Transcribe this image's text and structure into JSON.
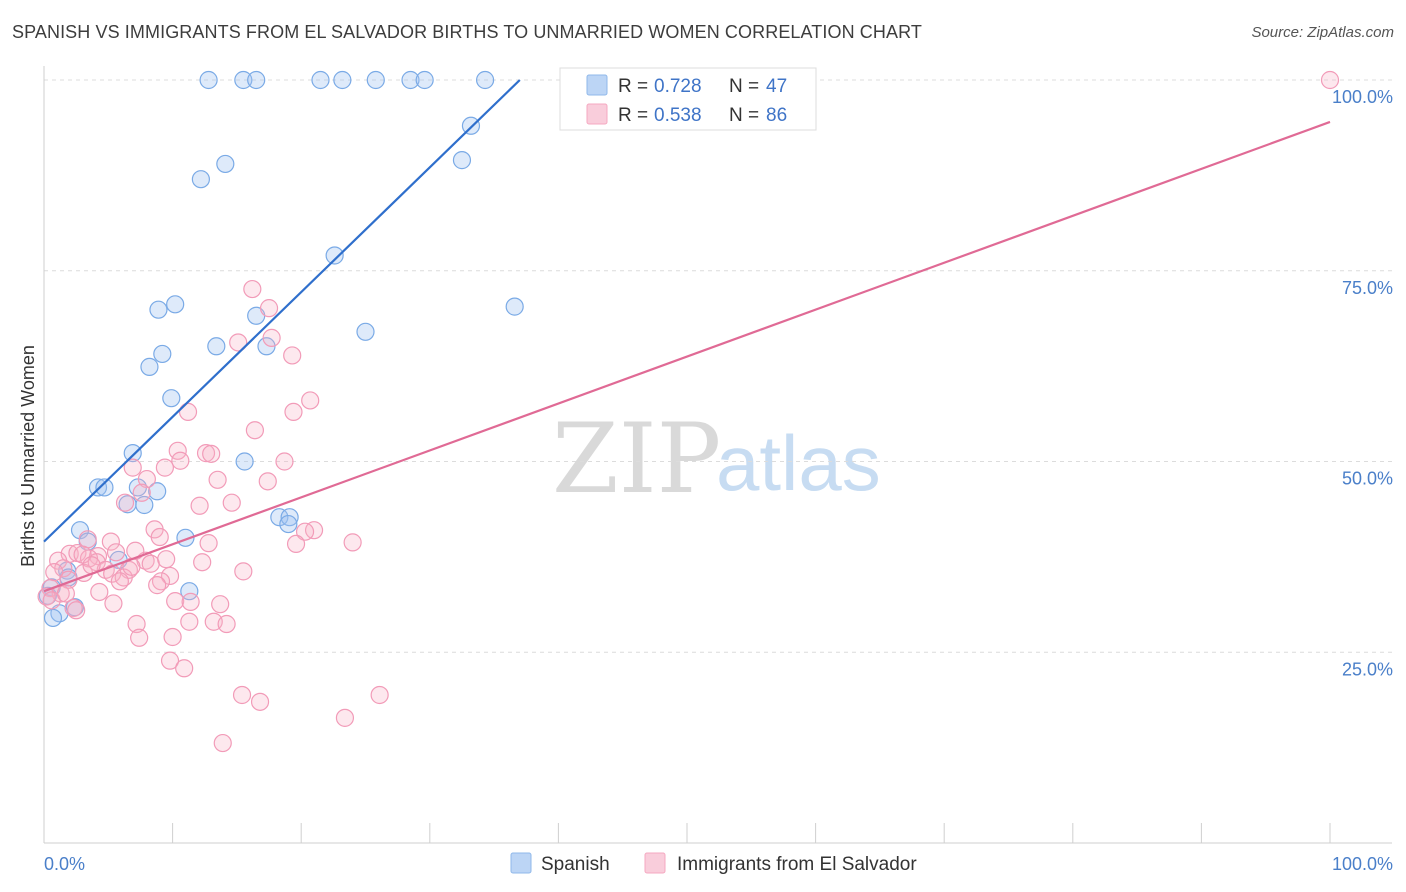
{
  "title": "SPANISH VS IMMIGRANTS FROM EL SALVADOR BIRTHS TO UNMARRIED WOMEN CORRELATION CHART",
  "source": "Source: ZipAtlas.com",
  "watermark": {
    "zip": "ZIP",
    "atlas": "atlas"
  },
  "legend": {
    "r_label": "R =",
    "n_label": "N =",
    "entries": [
      {
        "r": "0.728",
        "n": "47",
        "color": "#8fb8ea"
      },
      {
        "r": "0.538",
        "n": "86",
        "color": "#f5a8c0"
      }
    ]
  },
  "chart_data": {
    "type": "scatter",
    "xlabel": "",
    "ylabel": "Births to Unmarried Women",
    "xlim": [
      0,
      100
    ],
    "ylim": [
      0,
      100
    ],
    "x_tick_labels": [
      "0.0%",
      "100.0%"
    ],
    "y_tick_labels": [
      "25.0%",
      "50.0%",
      "75.0%",
      "100.0%"
    ],
    "y_ticks": [
      25,
      50,
      75,
      100
    ],
    "grid": true,
    "legend_position": "top-center",
    "series": [
      {
        "name": "Spanish",
        "color": "#8fb8ea",
        "line_color": "#2f6fcc",
        "trend": {
          "x": [
            0,
            37
          ],
          "y": [
            39.5,
            100
          ]
        },
        "points": [
          {
            "x": 12.8,
            "y": 100
          },
          {
            "x": 15.5,
            "y": 100
          },
          {
            "x": 16.5,
            "y": 100
          },
          {
            "x": 21.5,
            "y": 100
          },
          {
            "x": 23.2,
            "y": 100
          },
          {
            "x": 25.8,
            "y": 100
          },
          {
            "x": 28.5,
            "y": 100
          },
          {
            "x": 29.6,
            "y": 100
          },
          {
            "x": 34.3,
            "y": 100
          },
          {
            "x": 33.2,
            "y": 94
          },
          {
            "x": 32.5,
            "y": 89.5
          },
          {
            "x": 14.1,
            "y": 89
          },
          {
            "x": 12.2,
            "y": 87
          },
          {
            "x": 22.6,
            "y": 77
          },
          {
            "x": 36.6,
            "y": 70.3
          },
          {
            "x": 25.0,
            "y": 67
          },
          {
            "x": 10.2,
            "y": 70.6
          },
          {
            "x": 8.9,
            "y": 69.9
          },
          {
            "x": 16.5,
            "y": 69.1
          },
          {
            "x": 13.4,
            "y": 65.1
          },
          {
            "x": 17.3,
            "y": 65.1
          },
          {
            "x": 9.2,
            "y": 64.1
          },
          {
            "x": 8.2,
            "y": 62.4
          },
          {
            "x": 9.9,
            "y": 58.3
          },
          {
            "x": 6.9,
            "y": 51.1
          },
          {
            "x": 15.6,
            "y": 50
          },
          {
            "x": 4.2,
            "y": 46.6
          },
          {
            "x": 4.7,
            "y": 46.6
          },
          {
            "x": 7.3,
            "y": 46.6
          },
          {
            "x": 8.8,
            "y": 46.1
          },
          {
            "x": 6.5,
            "y": 44.4
          },
          {
            "x": 7.8,
            "y": 44.3
          },
          {
            "x": 18.3,
            "y": 42.7
          },
          {
            "x": 19.1,
            "y": 42.7
          },
          {
            "x": 19.0,
            "y": 41.8
          },
          {
            "x": 2.8,
            "y": 41
          },
          {
            "x": 11.0,
            "y": 40
          },
          {
            "x": 3.4,
            "y": 39.5
          },
          {
            "x": 5.8,
            "y": 37.1
          },
          {
            "x": 1.8,
            "y": 35.7
          },
          {
            "x": 1.9,
            "y": 34.8
          },
          {
            "x": 0.6,
            "y": 33.5
          },
          {
            "x": 11.3,
            "y": 33
          },
          {
            "x": 0.3,
            "y": 32.4
          },
          {
            "x": 2.4,
            "y": 30.9
          },
          {
            "x": 1.2,
            "y": 30.1
          },
          {
            "x": 0.7,
            "y": 29.5
          }
        ]
      },
      {
        "name": "Immigrants from El Salvador",
        "color": "#f5a8c0",
        "line_color": "#e06a95",
        "trend": {
          "x": [
            0,
            100
          ],
          "y": [
            33,
            94.5
          ]
        },
        "points": [
          {
            "x": 100,
            "y": 100
          },
          {
            "x": 16.2,
            "y": 72.6
          },
          {
            "x": 17.5,
            "y": 70.1
          },
          {
            "x": 17.7,
            "y": 66.2
          },
          {
            "x": 15.1,
            "y": 65.6
          },
          {
            "x": 19.3,
            "y": 63.9
          },
          {
            "x": 20.7,
            "y": 58
          },
          {
            "x": 19.4,
            "y": 56.5
          },
          {
            "x": 11.2,
            "y": 56.5
          },
          {
            "x": 16.4,
            "y": 54.1
          },
          {
            "x": 10.4,
            "y": 51.4
          },
          {
            "x": 12.6,
            "y": 51.1
          },
          {
            "x": 13.0,
            "y": 51
          },
          {
            "x": 10.6,
            "y": 50.1
          },
          {
            "x": 18.7,
            "y": 50
          },
          {
            "x": 6.9,
            "y": 49.2
          },
          {
            "x": 9.4,
            "y": 49.2
          },
          {
            "x": 8.0,
            "y": 47.7
          },
          {
            "x": 13.5,
            "y": 47.6
          },
          {
            "x": 17.4,
            "y": 47.4
          },
          {
            "x": 7.6,
            "y": 45.9
          },
          {
            "x": 6.3,
            "y": 44.6
          },
          {
            "x": 14.6,
            "y": 44.6
          },
          {
            "x": 12.1,
            "y": 44.2
          },
          {
            "x": 8.6,
            "y": 41.1
          },
          {
            "x": 21.0,
            "y": 41
          },
          {
            "x": 20.3,
            "y": 40.8
          },
          {
            "x": 9.0,
            "y": 40.1
          },
          {
            "x": 3.4,
            "y": 39.8
          },
          {
            "x": 5.2,
            "y": 39.5
          },
          {
            "x": 12.8,
            "y": 39.3
          },
          {
            "x": 19.6,
            "y": 39.2
          },
          {
            "x": 24.0,
            "y": 39.4
          },
          {
            "x": 2.0,
            "y": 37.9
          },
          {
            "x": 2.6,
            "y": 38
          },
          {
            "x": 4.2,
            "y": 37.6
          },
          {
            "x": 5.6,
            "y": 38.1
          },
          {
            "x": 3.5,
            "y": 37.3
          },
          {
            "x": 1.1,
            "y": 37
          },
          {
            "x": 4.1,
            "y": 36.8
          },
          {
            "x": 7.9,
            "y": 37
          },
          {
            "x": 8.3,
            "y": 36.6
          },
          {
            "x": 12.3,
            "y": 36.8
          },
          {
            "x": 1.5,
            "y": 36
          },
          {
            "x": 4.8,
            "y": 35.8
          },
          {
            "x": 5.3,
            "y": 35.3
          },
          {
            "x": 6.6,
            "y": 35.8
          },
          {
            "x": 15.5,
            "y": 35.6
          },
          {
            "x": 0.8,
            "y": 35.5
          },
          {
            "x": 3.1,
            "y": 35.4
          },
          {
            "x": 6.2,
            "y": 34.8
          },
          {
            "x": 9.8,
            "y": 35
          },
          {
            "x": 1.9,
            "y": 34.5
          },
          {
            "x": 5.9,
            "y": 34.3
          },
          {
            "x": 9.1,
            "y": 34.3
          },
          {
            "x": 8.8,
            "y": 33.8
          },
          {
            "x": 0.5,
            "y": 33.4
          },
          {
            "x": 4.3,
            "y": 32.9
          },
          {
            "x": 1.3,
            "y": 32.7
          },
          {
            "x": 0.2,
            "y": 32.3
          },
          {
            "x": 0.6,
            "y": 31.8
          },
          {
            "x": 10.2,
            "y": 31.7
          },
          {
            "x": 11.4,
            "y": 31.6
          },
          {
            "x": 5.4,
            "y": 31.4
          },
          {
            "x": 13.7,
            "y": 31.3
          },
          {
            "x": 2.3,
            "y": 30.8
          },
          {
            "x": 2.5,
            "y": 30.5
          },
          {
            "x": 11.3,
            "y": 29
          },
          {
            "x": 13.2,
            "y": 29
          },
          {
            "x": 14.2,
            "y": 28.7
          },
          {
            "x": 7.2,
            "y": 28.7
          },
          {
            "x": 7.4,
            "y": 26.9
          },
          {
            "x": 10.0,
            "y": 27
          },
          {
            "x": 9.8,
            "y": 23.9
          },
          {
            "x": 10.9,
            "y": 22.9
          },
          {
            "x": 15.4,
            "y": 19.4
          },
          {
            "x": 16.8,
            "y": 18.5
          },
          {
            "x": 26.1,
            "y": 19.4
          },
          {
            "x": 23.4,
            "y": 16.4
          },
          {
            "x": 13.9,
            "y": 13.1
          },
          {
            "x": 3.0,
            "y": 37.8
          },
          {
            "x": 1.7,
            "y": 32.7
          },
          {
            "x": 6.8,
            "y": 36.2
          },
          {
            "x": 7.1,
            "y": 38.3
          },
          {
            "x": 9.5,
            "y": 37.2
          },
          {
            "x": 3.7,
            "y": 36.4
          }
        ]
      }
    ]
  }
}
